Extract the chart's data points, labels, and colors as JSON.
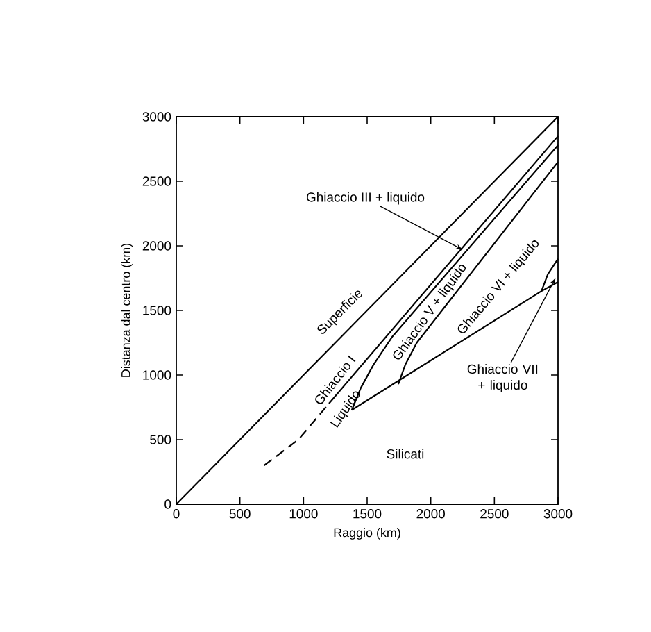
{
  "chart_data": {
    "type": "line",
    "xlabel": "Raggio (km)",
    "ylabel": "Distanza dal centro (km)",
    "xlim": [
      0,
      3000
    ],
    "ylim": [
      0,
      3000
    ],
    "xticks": [
      0,
      500,
      1000,
      1500,
      2000,
      2500,
      3000
    ],
    "yticks": [
      0,
      500,
      1000,
      1500,
      2000,
      2500,
      3000
    ],
    "grid": false,
    "marker": "none",
    "series": [
      {
        "color": "#000000",
        "line_style": "solid",
        "x": [
          0,
          3000
        ],
        "values": [
          0,
          3000
        ]
      },
      {
        "color": "#000000",
        "line_style": "dashed",
        "x": [
          690,
          960,
          1200
        ],
        "values": [
          300,
          500,
          780
        ]
      },
      {
        "color": "#000000",
        "line_style": "solid",
        "x": [
          1200,
          3000
        ],
        "values": [
          780,
          2850
        ]
      },
      {
        "color": "#000000",
        "line_style": "solid",
        "x": [
          1380,
          1450,
          1550,
          1700,
          3000
        ],
        "values": [
          730,
          900,
          1080,
          1300,
          2780
        ]
      },
      {
        "color": "#000000",
        "line_style": "solid",
        "x": [
          1745,
          1800,
          1890,
          3000
        ],
        "values": [
          930,
          1080,
          1250,
          2650
        ]
      },
      {
        "color": "#000000",
        "line_style": "solid",
        "x": [
          1380,
          2870,
          3000
        ],
        "values": [
          730,
          1650,
          1720
        ]
      },
      {
        "color": "#000000",
        "line_style": "solid",
        "x": [
          2870,
          2920,
          3000
        ],
        "values": [
          1650,
          1780,
          1900
        ]
      }
    ],
    "annotations": [
      "Superficie",
      "Ghiaccio I",
      "Liquido",
      "Ghiaccio V + liquido",
      "Ghiaccio VI + liquido",
      {
        "text": "Ghiaccio III + liquido",
        "x": 2250,
        "y": 1970
      },
      {
        "text": "Ghiaccio VII + liquido",
        "x": 2980,
        "y": 1750
      },
      "Silicati"
    ]
  }
}
